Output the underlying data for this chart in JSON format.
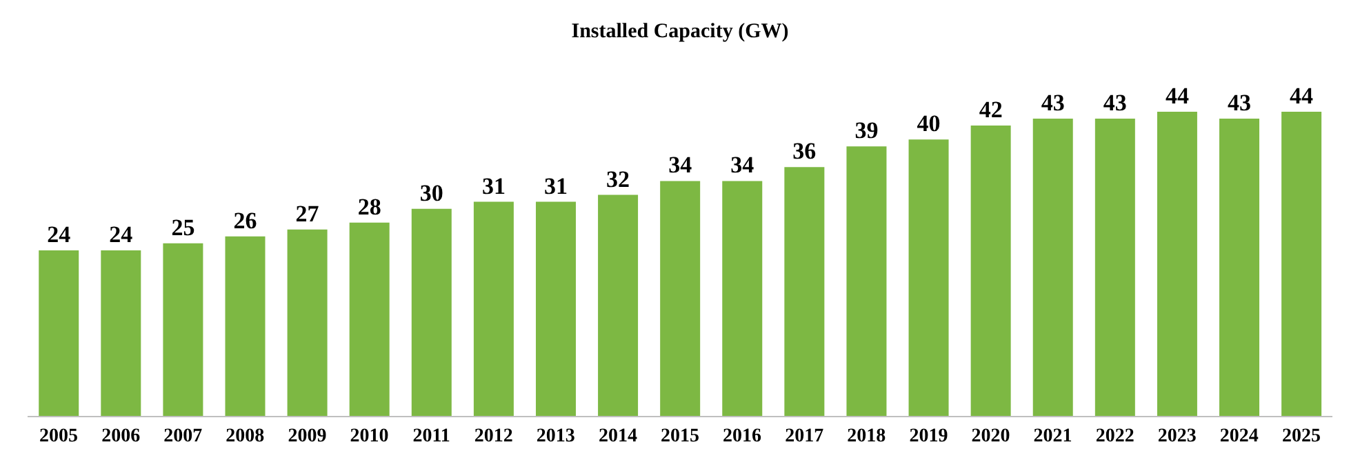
{
  "chart_data": {
    "type": "bar",
    "title": "Installed Capacity (GW)",
    "categories": [
      "2005",
      "2006",
      "2007",
      "2008",
      "2009",
      "2010",
      "2011",
      "2012",
      "2013",
      "2014",
      "2015",
      "2016",
      "2017",
      "2018",
      "2019",
      "2020",
      "2021",
      "2022",
      "2023",
      "2024",
      "2025"
    ],
    "values": [
      24,
      24,
      25,
      26,
      27,
      28,
      30,
      31,
      31,
      32,
      34,
      34,
      36,
      39,
      40,
      42,
      43,
      43,
      44,
      43,
      44
    ],
    "color": "#7db843",
    "data_labels": true,
    "tick_labels": "x",
    "grid": false
  }
}
